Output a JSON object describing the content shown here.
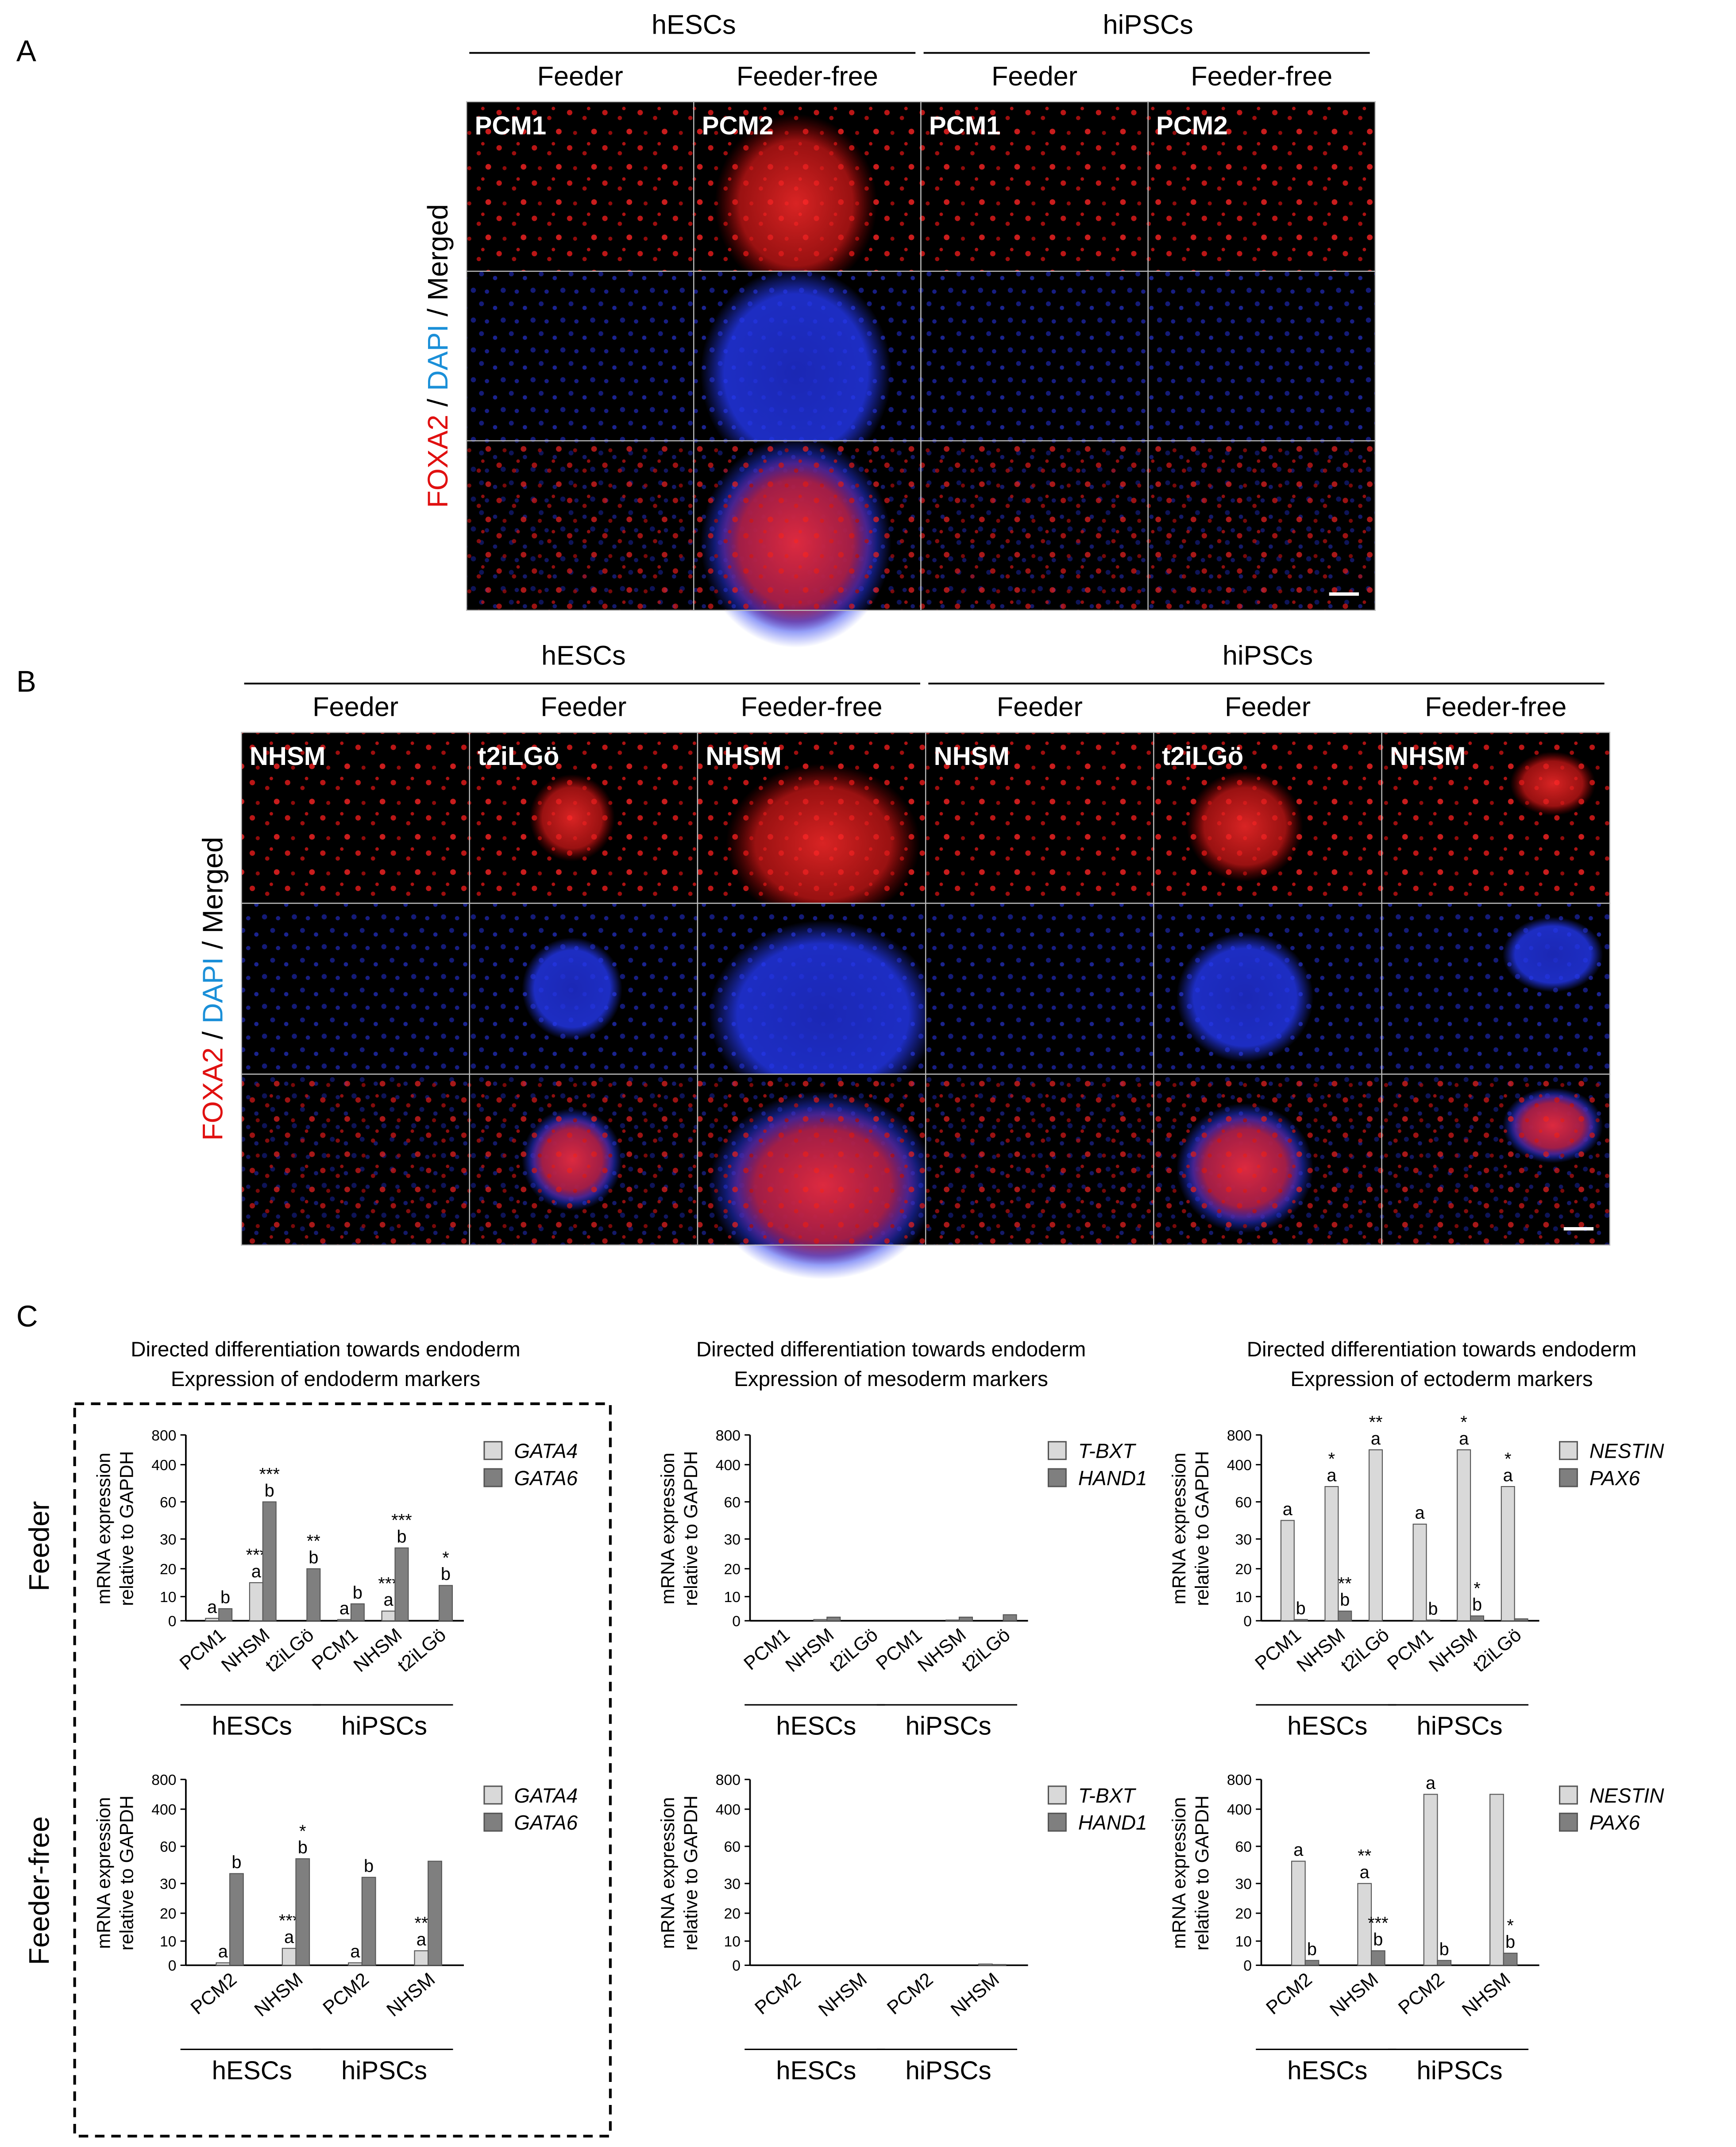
{
  "figure": {
    "panel_a": {
      "label": "A",
      "row_label": [
        "FOXA2",
        " / ",
        "DAPI",
        " / Merged"
      ],
      "groups": [
        {
          "name": "hESCs",
          "columns": [
            {
              "condition": "Feeder",
              "medium": "PCM1"
            },
            {
              "condition": "Feeder-free",
              "medium": "PCM2"
            }
          ]
        },
        {
          "name": "hiPSCs",
          "columns": [
            {
              "condition": "Feeder",
              "medium": "PCM1"
            },
            {
              "condition": "Feeder-free",
              "medium": "PCM2"
            }
          ]
        }
      ]
    },
    "panel_b": {
      "label": "B",
      "row_label": [
        "FOXA2",
        " / ",
        "DAPI",
        " / Merged"
      ],
      "groups": [
        {
          "name": "hESCs",
          "columns": [
            {
              "condition": "Feeder",
              "medium": "NHSM"
            },
            {
              "condition": "Feeder",
              "medium": "t2iLGö"
            },
            {
              "condition": "Feeder-free",
              "medium": "NHSM"
            }
          ]
        },
        {
          "name": "hiPSCs",
          "columns": [
            {
              "condition": "Feeder",
              "medium": "NHSM"
            },
            {
              "condition": "Feeder",
              "medium": "t2iLGö"
            },
            {
              "condition": "Feeder-free",
              "medium": "NHSM"
            }
          ]
        }
      ]
    },
    "panel_c": {
      "label": "C",
      "row_labels": [
        "Feeder",
        "Feeder-free"
      ],
      "columns": [
        {
          "title": [
            "Directed differentiation towards endoderm",
            "Expression of endoderm markers"
          ],
          "charts": [
            {
              "type": "bar",
              "y_label": [
                "mRNA expression",
                "relative to GAPDH"
              ],
              "ylim": [
                0,
                800
              ],
              "yticks": [
                0,
                10,
                20,
                30,
                60,
                400,
                800
              ],
              "groups": [
                {
                  "name": "hESCs",
                  "categories": [
                    "PCM1",
                    "NHSM",
                    "t2iLGö"
                  ]
                },
                {
                  "name": "hiPSCs",
                  "categories": [
                    "PCM1",
                    "NHSM",
                    "t2iLGö"
                  ]
                }
              ],
              "series": [
                {
                  "name": "GATA4",
                  "color": "#d9d9d9",
                  "values": [
                    1,
                    15,
                    0,
                    0.5,
                    4,
                    0
                  ],
                  "annotations": [
                    [
                      "a"
                    ],
                    [
                      "a",
                      "***"
                    ],
                    [],
                    [
                      "a"
                    ],
                    [
                      "a",
                      "***"
                    ],
                    []
                  ]
                },
                {
                  "name": "GATA6",
                  "color": "#7f7f7f",
                  "values": [
                    5,
                    60,
                    20,
                    7,
                    27,
                    14
                  ],
                  "annotations": [
                    [
                      "b"
                    ],
                    [
                      "b",
                      "***"
                    ],
                    [
                      "b",
                      "**"
                    ],
                    [
                      "b"
                    ],
                    [
                      "b",
                      "***"
                    ],
                    [
                      "b",
                      "*"
                    ]
                  ]
                }
              ]
            },
            {
              "type": "bar",
              "y_label": [
                "mRNA expression",
                "relative to GAPDH"
              ],
              "ylim": [
                0,
                800
              ],
              "yticks": [
                0,
                10,
                20,
                30,
                60,
                400,
                800
              ],
              "groups": [
                {
                  "name": "hESCs",
                  "categories": [
                    "PCM2",
                    "NHSM"
                  ]
                },
                {
                  "name": "hiPSCs",
                  "categories": [
                    "PCM2",
                    "NHSM"
                  ]
                }
              ],
              "series": [
                {
                  "name": "GATA4",
                  "color": "#d9d9d9",
                  "values": [
                    1,
                    7,
                    1,
                    6
                  ],
                  "annotations": [
                    [
                      "a"
                    ],
                    [
                      "a",
                      "***"
                    ],
                    [
                      "a"
                    ],
                    [
                      "a",
                      "**"
                    ]
                  ]
                },
                {
                  "name": "GATA6",
                  "color": "#7f7f7f",
                  "values": [
                    38,
                    50,
                    35,
                    48
                  ],
                  "annotations": [
                    [
                      "b"
                    ],
                    [
                      "b",
                      "*"
                    ],
                    [
                      "b"
                    ],
                    []
                  ]
                }
              ]
            }
          ]
        },
        {
          "title": [
            "Directed differentiation towards endoderm",
            "Expression of mesoderm markers"
          ],
          "charts": [
            {
              "type": "bar",
              "y_label": [
                "mRNA expression",
                "relative to GAPDH"
              ],
              "ylim": [
                0,
                800
              ],
              "yticks": [
                0,
                10,
                20,
                30,
                60,
                400,
                800
              ],
              "groups": [
                {
                  "name": "hESCs",
                  "categories": [
                    "PCM1",
                    "NHSM",
                    "t2iLGö"
                  ]
                },
                {
                  "name": "hiPSCs",
                  "categories": [
                    "PCM1",
                    "NHSM",
                    "t2iLGö"
                  ]
                }
              ],
              "series": [
                {
                  "name": "T-BXT",
                  "color": "#d9d9d9",
                  "values": [
                    0,
                    0.5,
                    0,
                    0,
                    0.3,
                    0
                  ],
                  "annotations": [
                    [],
                    [],
                    [],
                    [],
                    [],
                    []
                  ]
                },
                {
                  "name": "HAND1",
                  "color": "#7f7f7f",
                  "values": [
                    0,
                    1.5,
                    0,
                    0,
                    1.5,
                    2.5
                  ],
                  "annotations": [
                    [],
                    [],
                    [],
                    [],
                    [],
                    []
                  ]
                }
              ]
            },
            {
              "type": "bar",
              "y_label": [
                "mRNA expression",
                "relative to GAPDH"
              ],
              "ylim": [
                0,
                800
              ],
              "yticks": [
                0,
                10,
                20,
                30,
                60,
                400,
                800
              ],
              "groups": [
                {
                  "name": "hESCs",
                  "categories": [
                    "PCM2",
                    "NHSM"
                  ]
                },
                {
                  "name": "hiPSCs",
                  "categories": [
                    "PCM2",
                    "NHSM"
                  ]
                }
              ],
              "series": [
                {
                  "name": "T-BXT",
                  "color": "#d9d9d9",
                  "values": [
                    0,
                    0,
                    0,
                    0.5
                  ],
                  "annotations": [
                    [],
                    [],
                    [],
                    []
                  ]
                },
                {
                  "name": "HAND1",
                  "color": "#7f7f7f",
                  "values": [
                    0,
                    0,
                    0,
                    0.3
                  ],
                  "annotations": [
                    [],
                    [],
                    [],
                    []
                  ]
                }
              ]
            }
          ]
        },
        {
          "title": [
            "Directed differentiation towards endoderm",
            "Expression of ectoderm markers"
          ],
          "charts": [
            {
              "type": "bar",
              "y_label": [
                "mRNA expression",
                "relative to GAPDH"
              ],
              "ylim": [
                0,
                800
              ],
              "yticks": [
                0,
                10,
                20,
                30,
                60,
                400,
                800
              ],
              "groups": [
                {
                  "name": "hESCs",
                  "categories": [
                    "PCM1",
                    "NHSM",
                    "t2iLGö"
                  ]
                },
                {
                  "name": "hiPSCs",
                  "categories": [
                    "PCM1",
                    "NHSM",
                    "t2iLGö"
                  ]
                }
              ],
              "series": [
                {
                  "name": "NESTIN",
                  "color": "#d9d9d9",
                  "values": [
                    45,
                    200,
                    600,
                    42,
                    600,
                    200
                  ],
                  "annotations": [
                    [
                      "a"
                    ],
                    [
                      "a",
                      "*"
                    ],
                    [
                      "a",
                      "**"
                    ],
                    [
                      "a"
                    ],
                    [
                      "a",
                      "*"
                    ],
                    [
                      "a",
                      "*"
                    ]
                  ]
                },
                {
                  "name": "PAX6",
                  "color": "#7f7f7f",
                  "values": [
                    0.5,
                    4,
                    0,
                    0.3,
                    2,
                    0.8
                  ],
                  "annotations": [
                    [
                      "b"
                    ],
                    [
                      "b",
                      "**"
                    ],
                    [],
                    [
                      "b"
                    ],
                    [
                      "b",
                      "*"
                    ],
                    []
                  ]
                }
              ]
            },
            {
              "type": "bar",
              "y_label": [
                "mRNA expression",
                "relative to GAPDH"
              ],
              "ylim": [
                0,
                800
              ],
              "yticks": [
                0,
                10,
                20,
                30,
                60,
                400,
                800
              ],
              "groups": [
                {
                  "name": "hESCs",
                  "categories": [
                    "PCM2",
                    "NHSM"
                  ]
                },
                {
                  "name": "hiPSCs",
                  "categories": [
                    "PCM2",
                    "NHSM"
                  ]
                }
              ],
              "series": [
                {
                  "name": "NESTIN",
                  "color": "#d9d9d9",
                  "values": [
                    48,
                    30,
                    600,
                    600
                  ],
                  "annotations": [
                    [
                      "a"
                    ],
                    [
                      "a",
                      "**"
                    ],
                    [
                      "a"
                    ],
                    []
                  ]
                },
                {
                  "name": "PAX6",
                  "color": "#7f7f7f",
                  "values": [
                    2,
                    6,
                    2,
                    5
                  ],
                  "annotations": [
                    [
                      "b"
                    ],
                    [
                      "b",
                      "***"
                    ],
                    [
                      "b"
                    ],
                    [
                      "b",
                      "*"
                    ]
                  ]
                }
              ]
            }
          ]
        }
      ]
    }
  }
}
